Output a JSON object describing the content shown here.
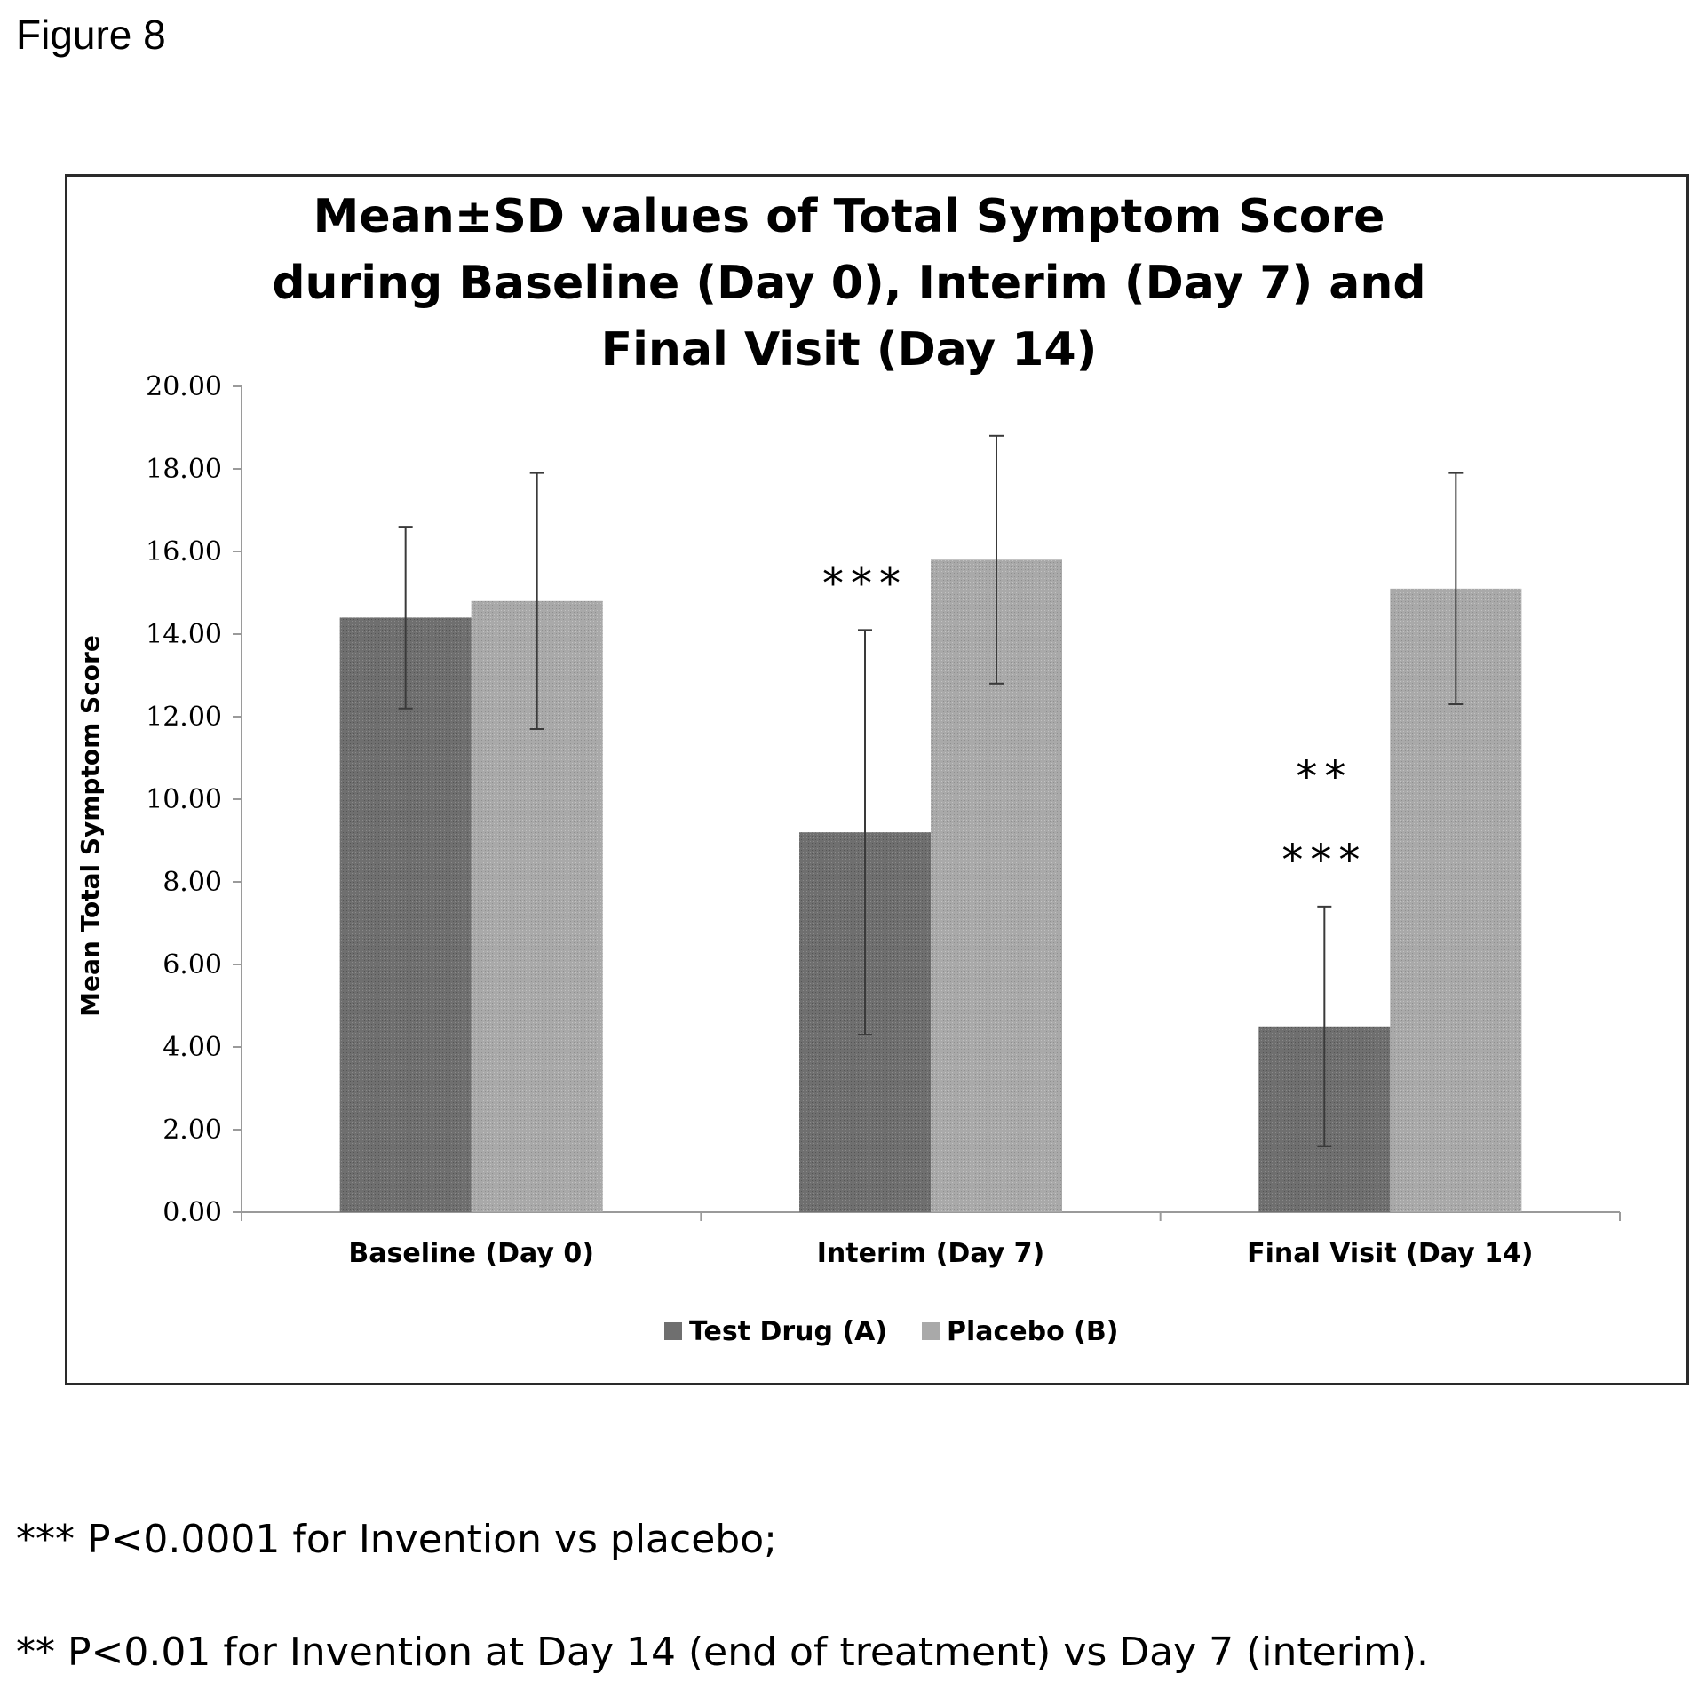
{
  "figure_label": "Figure 8",
  "footnotes": [
    "*** P<0.0001 for Invention vs placebo;",
    "** P<0.01 for Invention at Day 14 (end of treatment) vs Day 7 (interim)."
  ],
  "colors": {
    "test_drug": "#6f6f6f",
    "placebo": "#a9a9a9",
    "error_bar": "#3a3a3a",
    "axis": "#9a9a9a"
  },
  "chart_data": {
    "type": "bar",
    "title": [
      "Mean±SD values of Total Symptom Score",
      "during Baseline (Day 0), Interim (Day 7) and",
      "Final Visit (Day 14)"
    ],
    "xlabel": "",
    "ylabel": "Mean Total Symptom Score",
    "ylim": [
      0,
      20
    ],
    "yticks": [
      "0.00",
      "2.00",
      "4.00",
      "6.00",
      "8.00",
      "10.00",
      "12.00",
      "14.00",
      "16.00",
      "18.00",
      "20.00"
    ],
    "categories": [
      "Baseline (Day 0)",
      "Interim (Day 7)",
      "Final Visit (Day 14)"
    ],
    "series": [
      {
        "name": "Test Drug (A)",
        "values": [
          14.4,
          9.2,
          4.5
        ],
        "sd": [
          2.2,
          4.9,
          2.9
        ]
      },
      {
        "name": "Placebo (B)",
        "values": [
          14.8,
          15.8,
          15.1
        ],
        "sd": [
          3.1,
          3.0,
          2.8
        ]
      }
    ],
    "annotations": [
      {
        "category": 1,
        "series": 0,
        "lines": [
          "***"
        ]
      },
      {
        "category": 2,
        "series": 0,
        "lines": [
          "**",
          "***"
        ]
      }
    ],
    "legend_position": "bottom",
    "grid": false
  }
}
